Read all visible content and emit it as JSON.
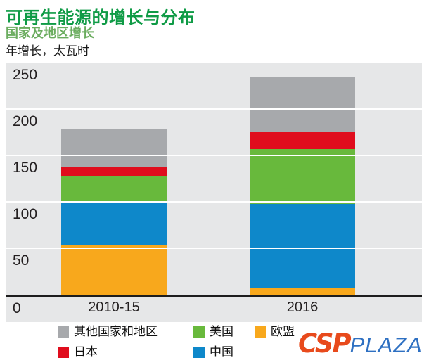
{
  "header": {
    "title": "可再生能源的增长与分布",
    "subtitle": "国家及地区增长",
    "units_label": "年增长，太瓦时",
    "title_color": "#0f9b46",
    "subtitle_color": "#6aac5e"
  },
  "chart_data": {
    "type": "bar",
    "stacked": true,
    "title": "可再生能源的增长与分布",
    "subtitle": "国家及地区增长",
    "ylabel": "年增长，太瓦时 (TWh)",
    "categories": [
      "2010-15",
      "2016"
    ],
    "series": [
      {
        "name": "欧盟",
        "color": "#f8a81c",
        "values": [
          54,
          7
        ]
      },
      {
        "name": "中国",
        "color": "#0e88ca",
        "values": [
          47,
          91
        ]
      },
      {
        "name": "美国",
        "color": "#68b93c",
        "values": [
          26,
          59
        ]
      },
      {
        "name": "日本",
        "color": "#e00d1d",
        "values": [
          10,
          18
        ]
      },
      {
        "name": "其他国家和地区",
        "color": "#a7a9ac",
        "values": [
          41,
          59
        ]
      }
    ],
    "totals": [
      178,
      234
    ],
    "ylim": [
      0,
      250
    ],
    "yticks": [
      0,
      50,
      100,
      150,
      200,
      250
    ],
    "grid": true,
    "gridline_color": "#ffffff",
    "plot_background": "#e6e7e8",
    "legend_position": "bottom"
  },
  "legend": {
    "items": [
      {
        "label": "其他国家和地区",
        "color": "#a7a9ac"
      },
      {
        "label": "美国",
        "color": "#68b93c"
      },
      {
        "label": "欧盟",
        "color": "#f8a81c"
      },
      {
        "label": "日本",
        "color": "#e00d1d"
      },
      {
        "label": "中国",
        "color": "#0e88ca"
      }
    ]
  },
  "watermark": {
    "part1": "CSP",
    "part2": "PLAZA",
    "color1": "#e84a1c",
    "color2": "#2e70c2"
  }
}
